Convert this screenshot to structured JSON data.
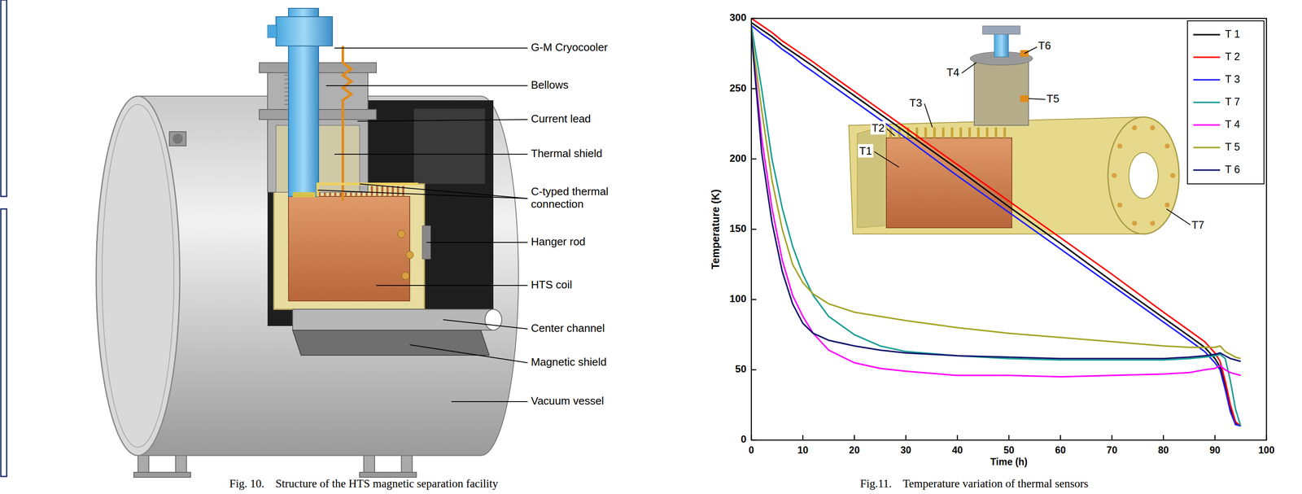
{
  "diagram": {
    "labels": [
      "G-M Cryocooler",
      "Bellows",
      "Current lead",
      "Thermal shield",
      "C-typed thermal connection",
      "Hanger rod",
      "HTS coil",
      "Center channel",
      "Magnetic shield",
      "Vacuum vessel"
    ],
    "caption": "Fig. 10.    Structure of the HTS magnetic separation facility"
  },
  "chart_data": {
    "type": "line",
    "caption": "Fig.11.    Temperature variation of thermal sensors",
    "x_label": "Time (h)",
    "y_label": "Temperature (K)",
    "x": [
      0,
      2,
      4,
      6,
      8,
      10,
      12,
      15,
      20,
      25,
      30,
      40,
      50,
      60,
      70,
      80,
      85,
      88,
      90,
      91,
      92,
      93,
      94,
      95
    ],
    "series": [
      {
        "name": "T 1",
        "color": "#000000",
        "values": [
          297,
          292,
          287,
          281,
          276,
          271,
          266,
          258,
          245,
          232,
          219,
          193,
          166,
          140,
          113,
          87,
          74,
          66,
          58,
          52,
          38,
          22,
          12,
          10
        ]
      },
      {
        "name": "T 2",
        "color": "#ff0000",
        "values": [
          300,
          295,
          290,
          284,
          279,
          274,
          269,
          261,
          248,
          235,
          222,
          196,
          170,
          144,
          118,
          91,
          78,
          70,
          62,
          56,
          42,
          25,
          13,
          10
        ]
      },
      {
        "name": "T 3",
        "color": "#1f1fff",
        "values": [
          295,
          289,
          284,
          278,
          273,
          267,
          262,
          254,
          241,
          228,
          215,
          188,
          162,
          136,
          110,
          84,
          71,
          63,
          55,
          50,
          36,
          20,
          11,
          10
        ]
      },
      {
        "name": "T 7",
        "color": "#1a9e96",
        "values": [
          295,
          250,
          200,
          165,
          138,
          118,
          103,
          88,
          75,
          67,
          63,
          60,
          58,
          57,
          57,
          57,
          58,
          59,
          60,
          61,
          58,
          42,
          22,
          10
        ]
      },
      {
        "name": "T 4",
        "color": "#ff00ff",
        "values": [
          290,
          215,
          165,
          128,
          103,
          88,
          76,
          64,
          55,
          51,
          49,
          46,
          46,
          45,
          46,
          47,
          48,
          50,
          51,
          53,
          50,
          48,
          47,
          46
        ]
      },
      {
        "name": "T 5",
        "color": "#a3a325",
        "values": [
          290,
          235,
          185,
          150,
          125,
          112,
          104,
          97,
          91,
          88,
          85,
          80,
          76,
          73,
          70,
          67,
          66,
          66,
          66,
          67,
          63,
          61,
          59,
          58
        ]
      },
      {
        "name": "T 6",
        "color": "#14146e",
        "values": [
          290,
          205,
          155,
          120,
          97,
          83,
          76,
          71,
          67,
          64,
          62,
          60,
          59,
          58,
          58,
          58,
          59,
          60,
          61,
          62,
          60,
          58,
          57,
          56
        ]
      }
    ],
    "xlim": [
      0,
      100
    ],
    "xticks": [
      0,
      10,
      20,
      30,
      40,
      50,
      60,
      70,
      80,
      90,
      100
    ],
    "ylim": [
      0,
      300
    ],
    "yticks": [
      0,
      50,
      100,
      150,
      200,
      250,
      300
    ],
    "grid": false,
    "legend": "top-right",
    "annotations": [
      "T6",
      "T4",
      "T3",
      "T5",
      "T2",
      "T1",
      "T7"
    ]
  }
}
